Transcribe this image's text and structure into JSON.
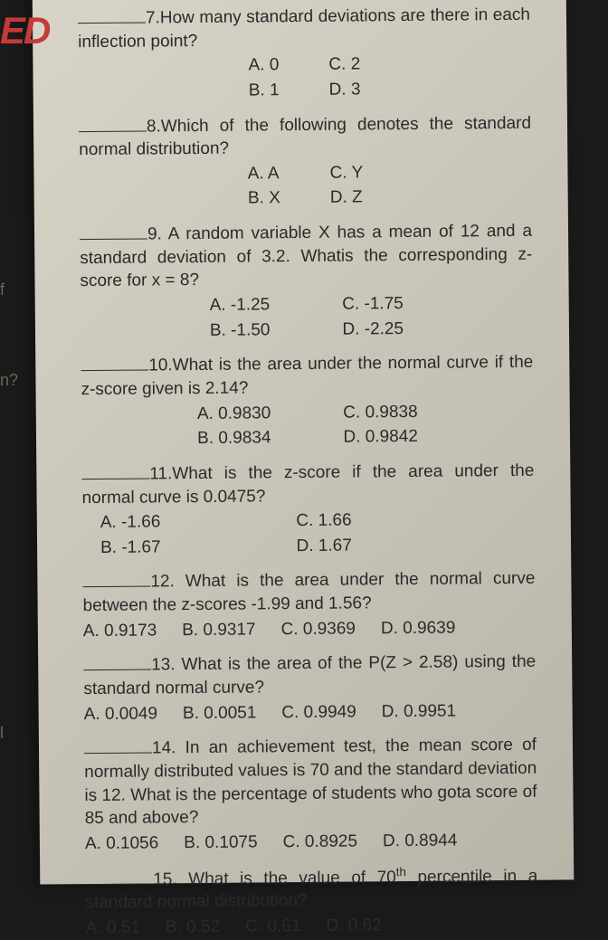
{
  "edge": {
    "red": "ED",
    "f": "f",
    "n": "n?",
    "l": "l"
  },
  "q7": {
    "text": "7.How many standard deviations are there in each inflection point?",
    "a": "A. 0",
    "b": "B. 1",
    "c": "C. 2",
    "d": "D. 3"
  },
  "q8": {
    "text": "8.Which of the following denotes the standard normal distribution?",
    "a": "A. A",
    "b": "B. X",
    "c": "C. Y",
    "d": "D. Z"
  },
  "q9": {
    "text": "9. A random variable X has a mean of 12 and a standard deviation of 3.2. Whatis the corresponding z-score for x = 8?",
    "a": "A. -1.25",
    "b": "B. -1.50",
    "c": "C. -1.75",
    "d": "D. -2.25"
  },
  "q10": {
    "text": "10.What is the area under the normal curve if the z-score given is 2.14?",
    "a": "A. 0.9830",
    "b": "B. 0.9834",
    "c": "C. 0.9838",
    "d": "D. 0.9842"
  },
  "q11": {
    "text": "11.What is the z-score if the area under the normal curve is 0.0475?",
    "a": "A. -1.66",
    "b": "B. -1.67",
    "c": "C. 1.66",
    "d": "D. 1.67"
  },
  "q12": {
    "text": "12. What is the area under the normal curve between the z-scores -1.99 and 1.56?",
    "a": "A. 0.9173",
    "b": "B. 0.9317",
    "c": "C. 0.9369",
    "d": "D. 0.9639"
  },
  "q13": {
    "text": "13. What is the area of the P(Z > 2.58) using the standard normal curve?",
    "a": "A. 0.0049",
    "b": "B. 0.0051",
    "c": "C. 0.9949",
    "d": "D. 0.9951"
  },
  "q14": {
    "text": "14. In an achievement test, the mean score of normally distributed values is 70 and the standard deviation is 12. What is the percentage of students who gota score of 85 and above?",
    "a": "A. 0.1056",
    "b": "B. 0.1075",
    "c": "C. 0.8925",
    "d": "D. 0.8944"
  },
  "q15": {
    "text_pre": "15. What is the value of 70",
    "text_sup": "th",
    "text_post": " percentile in a standard normal distribution?",
    "a": "A. 0.51",
    "b": "B. 0.52",
    "c": "C. 0.61",
    "d": "D. 0.62"
  }
}
